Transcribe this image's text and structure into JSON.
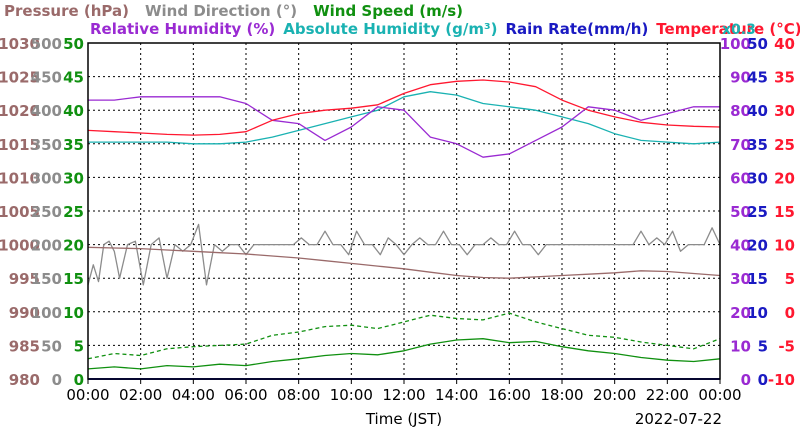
{
  "chart_data": {
    "type": "line",
    "legend": {
      "row1": [
        {
          "text": "Pressure (hPa)",
          "color": "#9a6a6a"
        },
        {
          "text": "Wind Direction (°)",
          "color": "#8c8c8c"
        },
        {
          "text": "Wind Speed (m/s)",
          "color": "#109010"
        }
      ],
      "row2": [
        {
          "text": "Relative Humidity (%)",
          "color": "#9a2ad2"
        },
        {
          "text": "Absolute Humidity (g/m³)",
          "color": "#1ab2b2"
        },
        {
          "text": "Rain Rate(mm/h)",
          "color": "#1a1ac2"
        },
        {
          "text": "Temperature (°C)",
          "color": "#ff1830"
        }
      ],
      "multiplier": "x0.3"
    },
    "xlabel": "Time (JST)",
    "date": "2022-07-22",
    "x_ticks": [
      "00:00",
      "02:00",
      "04:00",
      "06:00",
      "08:00",
      "10:00",
      "12:00",
      "14:00",
      "16:00",
      "18:00",
      "20:00",
      "22:00",
      "00:00"
    ],
    "axes": {
      "pressure": {
        "color": "#9a6a6a",
        "min": 980,
        "max": 1030,
        "ticks": [
          980,
          985,
          990,
          995,
          1000,
          1005,
          1010,
          1015,
          1020,
          1025,
          1030
        ]
      },
      "wind_direction": {
        "color": "#8c8c8c",
        "min": 0,
        "max": 500,
        "ticks": [
          0,
          50,
          100,
          150,
          200,
          250,
          300,
          350,
          400,
          450,
          500
        ]
      },
      "wind_speed": {
        "color": "#109010",
        "min": 0,
        "max": 50,
        "ticks": [
          0,
          5,
          10,
          15,
          20,
          25,
          30,
          35,
          40,
          45,
          50
        ]
      },
      "relative_humidity": {
        "color": "#9a2ad2",
        "min": 0,
        "max": 100,
        "ticks": [
          0,
          10,
          20,
          30,
          40,
          50,
          60,
          70,
          80,
          90,
          100
        ]
      },
      "rain_rate": {
        "color": "#1a1ac2",
        "min": 0,
        "max": 50,
        "ticks": [
          0,
          5,
          10,
          15,
          20,
          25,
          30,
          35,
          40,
          45,
          50
        ]
      },
      "temperature": {
        "color": "#ff1830",
        "min": -10,
        "max": 40,
        "ticks": [
          -10,
          -5,
          0,
          5,
          10,
          15,
          20,
          25,
          30,
          35,
          40
        ]
      }
    },
    "series": [
      {
        "name": "Pressure (hPa)",
        "axis": "pressure",
        "color": "#9a6a6a",
        "style": "solid",
        "x": [
          0,
          1,
          2,
          3,
          4,
          5,
          6,
          7,
          8,
          9,
          10,
          11,
          12,
          13,
          14,
          15,
          16,
          17,
          18,
          19,
          20,
          21,
          22,
          23,
          24
        ],
        "y": [
          999.6,
          999.5,
          999.4,
          999.2,
          999.0,
          998.8,
          998.6,
          998.3,
          998.0,
          997.6,
          997.2,
          996.8,
          996.4,
          995.9,
          995.4,
          995.1,
          995.0,
          995.2,
          995.4,
          995.6,
          995.8,
          996.1,
          996.0,
          995.7,
          995.4
        ]
      },
      {
        "name": "Wind Direction (°)",
        "axis": "wind_direction",
        "color": "#8c8c8c",
        "style": "solid",
        "x": [
          0,
          0.2,
          0.4,
          0.6,
          0.8,
          1,
          1.2,
          1.5,
          1.8,
          2.1,
          2.4,
          2.7,
          3,
          3.3,
          3.6,
          3.9,
          4.2,
          4.5,
          4.8,
          5.1,
          5.4,
          5.7,
          6,
          6.3,
          6.6,
          6.9,
          7.2,
          7.5,
          7.8,
          8.1,
          8.4,
          8.7,
          9,
          9.3,
          9.6,
          9.9,
          10.2,
          10.5,
          10.8,
          11.1,
          11.4,
          11.7,
          12,
          12.3,
          12.6,
          12.9,
          13.2,
          13.5,
          13.8,
          14.1,
          14.4,
          14.7,
          15,
          15.3,
          15.6,
          15.9,
          16.2,
          16.5,
          16.8,
          17.1,
          17.4,
          17.7,
          18,
          18.3,
          18.6,
          18.9,
          19.2,
          19.5,
          19.8,
          20.1,
          20.4,
          20.7,
          21,
          21.3,
          21.6,
          21.9,
          22.2,
          22.5,
          22.8,
          23.1,
          23.4,
          23.7,
          24
        ],
        "y": [
          140,
          170,
          145,
          200,
          205,
          190,
          150,
          200,
          205,
          140,
          200,
          210,
          150,
          200,
          190,
          200,
          230,
          140,
          200,
          190,
          200,
          200,
          185,
          200,
          200,
          200,
          200,
          200,
          200,
          210,
          200,
          200,
          220,
          200,
          200,
          185,
          220,
          200,
          200,
          185,
          210,
          200,
          185,
          200,
          210,
          200,
          200,
          220,
          200,
          200,
          185,
          200,
          200,
          210,
          200,
          200,
          220,
          200,
          200,
          185,
          200,
          200,
          200,
          200,
          200,
          200,
          200,
          200,
          200,
          200,
          200,
          200,
          220,
          200,
          210,
          200,
          220,
          190,
          200,
          200,
          200,
          225,
          200
        ]
      },
      {
        "name": "Wind Speed (m/s) average",
        "axis": "wind_speed",
        "color": "#109010",
        "style": "solid",
        "x": [
          0,
          1,
          2,
          3,
          4,
          5,
          6,
          7,
          8,
          9,
          10,
          11,
          12,
          13,
          14,
          15,
          16,
          17,
          18,
          19,
          20,
          21,
          22,
          23,
          24
        ],
        "y": [
          1.5,
          1.8,
          1.5,
          2.0,
          1.8,
          2.2,
          2.0,
          2.6,
          3.0,
          3.5,
          3.8,
          3.6,
          4.2,
          5.2,
          5.8,
          6.0,
          5.4,
          5.6,
          4.8,
          4.2,
          3.8,
          3.2,
          2.8,
          2.6,
          3.0
        ]
      },
      {
        "name": "Wind Speed (m/s) gust",
        "axis": "wind_speed",
        "color": "#109010",
        "style": "dashed",
        "x": [
          0,
          1,
          2,
          3,
          4,
          5,
          6,
          7,
          8,
          9,
          10,
          11,
          12,
          13,
          14,
          15,
          16,
          17,
          18,
          19,
          20,
          21,
          22,
          23,
          24
        ],
        "y": [
          3.0,
          3.8,
          3.5,
          4.5,
          4.8,
          5.0,
          5.2,
          6.5,
          7.0,
          7.8,
          8.0,
          7.5,
          8.5,
          9.5,
          9.0,
          8.8,
          9.8,
          8.5,
          7.5,
          6.5,
          6.2,
          5.5,
          5.0,
          4.5,
          6.0
        ]
      },
      {
        "name": "Relative Humidity (%)",
        "axis": "relative_humidity",
        "color": "#9a2ad2",
        "style": "solid",
        "x": [
          0,
          1,
          2,
          3,
          4,
          5,
          6,
          7,
          8,
          9,
          10,
          11,
          12,
          13,
          14,
          15,
          16,
          17,
          18,
          19,
          20,
          21,
          22,
          23,
          24
        ],
        "y": [
          83,
          83,
          84,
          84,
          84,
          84,
          82,
          77,
          76,
          71,
          75,
          81,
          80,
          72,
          70,
          66,
          67,
          71,
          75,
          81,
          80,
          77,
          79,
          81,
          81
        ]
      },
      {
        "name": "Absolute Humidity (g/m³)",
        "axis": "relative_humidity",
        "color": "#1ab2b2",
        "style": "solid",
        "x": [
          0,
          1,
          2,
          3,
          4,
          5,
          6,
          7,
          8,
          9,
          10,
          11,
          12,
          13,
          14,
          15,
          16,
          17,
          18,
          19,
          20,
          21,
          22,
          23,
          24
        ],
        "y": [
          70.5,
          70.5,
          70.5,
          70.5,
          70,
          70,
          70.5,
          72,
          74,
          76,
          78,
          80,
          84,
          85.5,
          84.5,
          82,
          81,
          80,
          78,
          76,
          73,
          71,
          70.5,
          70,
          70.5
        ]
      },
      {
        "name": "Rain Rate(mm/h)",
        "axis": "rain_rate",
        "color": "#1a1ac2",
        "style": "solid",
        "x": [
          0,
          24
        ],
        "y": [
          0,
          0
        ]
      },
      {
        "name": "Temperature (°C)",
        "axis": "temperature",
        "color": "#ff1830",
        "style": "solid",
        "x": [
          0,
          1,
          2,
          3,
          4,
          5,
          6,
          7,
          8,
          9,
          10,
          11,
          12,
          13,
          14,
          15,
          16,
          17,
          18,
          19,
          20,
          21,
          22,
          23,
          24
        ],
        "y": [
          27,
          26.8,
          26.6,
          26.4,
          26.3,
          26.4,
          26.8,
          28.5,
          29.5,
          30.0,
          30.3,
          30.8,
          32.5,
          33.8,
          34.3,
          34.5,
          34.2,
          33.5,
          31.5,
          30.0,
          29.0,
          28.2,
          27.8,
          27.6,
          27.5
        ]
      }
    ]
  }
}
